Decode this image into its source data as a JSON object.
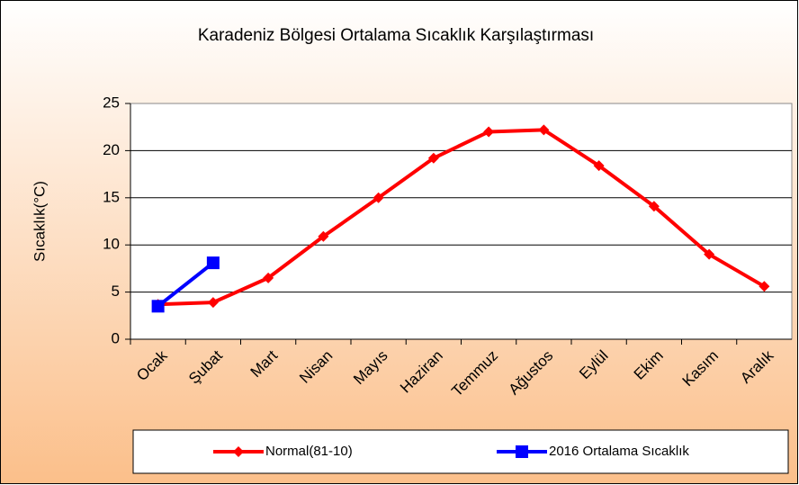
{
  "chart_data": {
    "type": "line",
    "title": "Karadeniz  Bölgesi Ortalama Sıcaklık Karşılaştırması",
    "y_label": "Sıcaklık(°C)",
    "categories": [
      "Ocak",
      "Şubat",
      "Mart",
      "Nisan",
      "Mayıs",
      "Haziran",
      "Temmuz",
      "Ağustos",
      "Eylül",
      "Ekim",
      "Kasım",
      "Aralık"
    ],
    "series": [
      {
        "name": "Normal(81-10)",
        "color": "#ff0000",
        "marker": "diamond",
        "values": [
          3.7,
          3.9,
          6.5,
          10.9,
          15.0,
          19.2,
          22.0,
          22.2,
          18.4,
          14.1,
          9.0,
          5.6
        ]
      },
      {
        "name": "2016 Ortalama Sıcaklık",
        "color": "#0000ff",
        "marker": "square",
        "values": [
          3.5,
          8.1,
          null,
          null,
          null,
          null,
          null,
          null,
          null,
          null,
          null,
          null
        ]
      }
    ],
    "ylim": [
      0,
      25
    ],
    "yticks": [
      0,
      5,
      10,
      15,
      20,
      25
    ],
    "grid": true,
    "legend": "bottom"
  }
}
